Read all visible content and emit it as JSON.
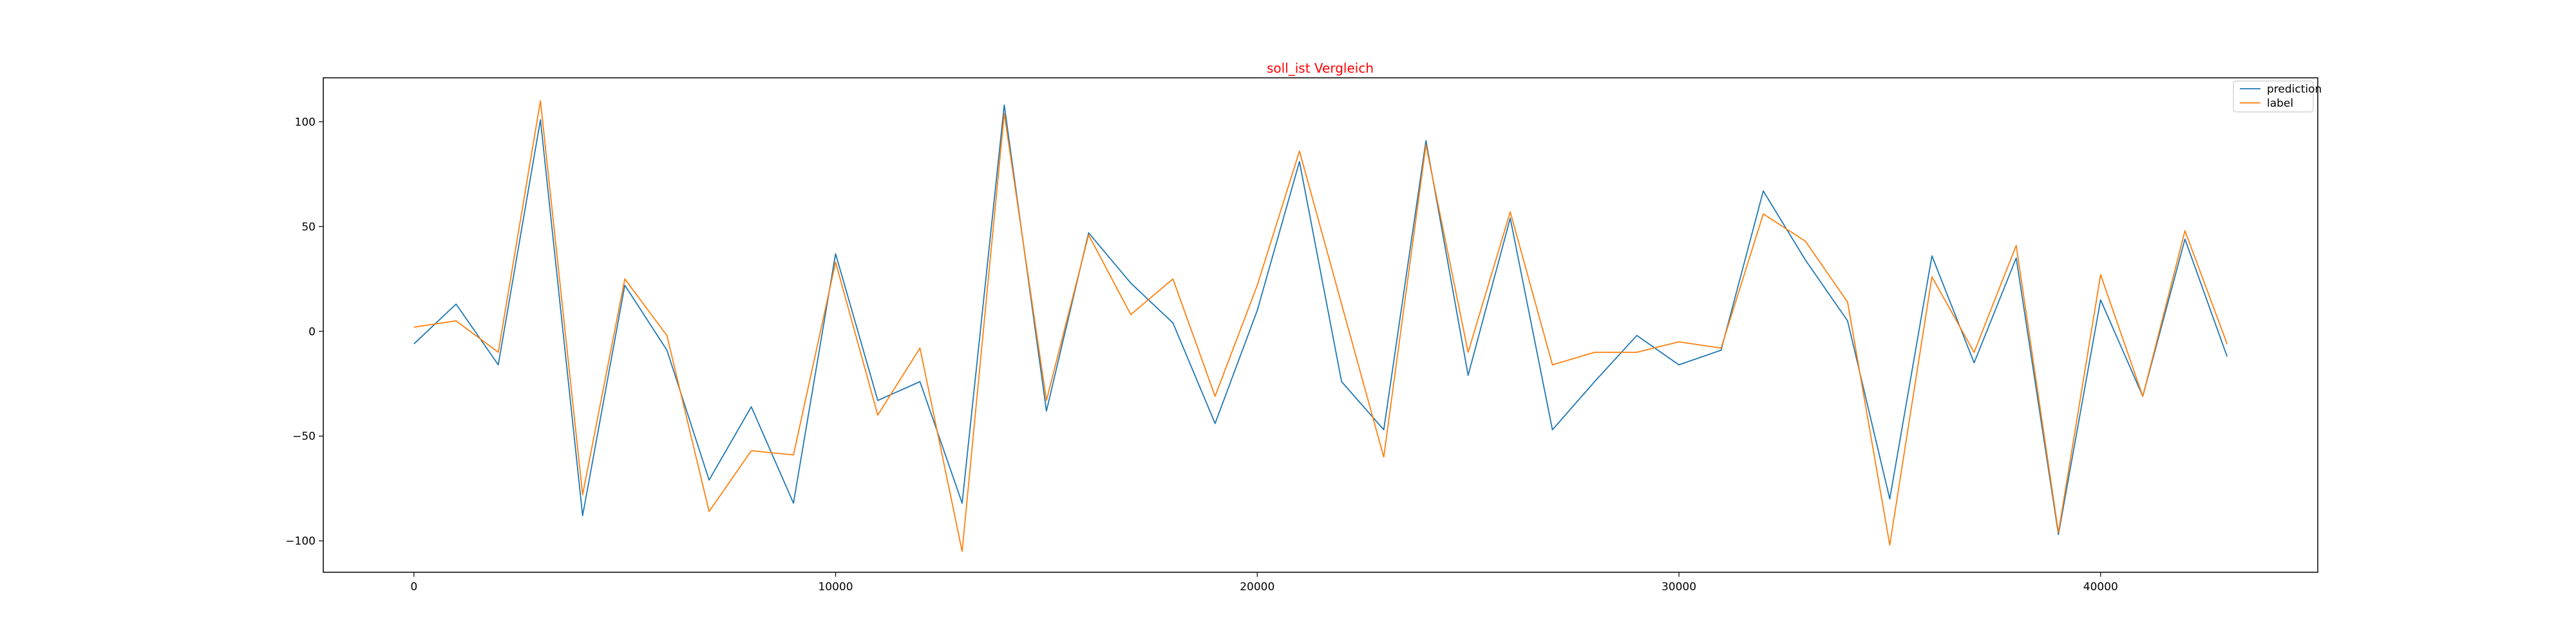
{
  "chart_data": {
    "type": "line",
    "title": "soll_ist Vergleich",
    "title_color": "#ff0000",
    "xlabel": "",
    "ylabel": "",
    "xlim": [
      -2150,
      45150
    ],
    "ylim": [
      -115,
      121
    ],
    "x_ticks": [
      0,
      10000,
      20000,
      30000,
      40000
    ],
    "x_tick_labels": [
      "0",
      "10000",
      "20000",
      "30000",
      "40000"
    ],
    "y_ticks": [
      -100,
      -50,
      0,
      50,
      100
    ],
    "y_tick_labels": [
      "−100",
      "−50",
      "0",
      "50",
      "100"
    ],
    "grid": false,
    "legend_position": "top-right",
    "x": [
      0,
      1000,
      2000,
      3000,
      4000,
      5000,
      6000,
      7000,
      8000,
      9000,
      10000,
      11000,
      12000,
      13000,
      14000,
      15000,
      16000,
      17000,
      18000,
      19000,
      20000,
      21000,
      22000,
      23000,
      24000,
      25000,
      26000,
      27000,
      28000,
      29000,
      30000,
      31000,
      32000,
      33000,
      34000,
      35000,
      36000,
      37000,
      38000,
      39000,
      40000,
      41000,
      42000,
      43000
    ],
    "series": [
      {
        "name": "prediction",
        "color": "#1f77b4",
        "values": [
          -6,
          13,
          -16,
          101,
          -88,
          22,
          -9,
          -71,
          -36,
          -82,
          37,
          -33,
          -24,
          -82,
          108,
          -38,
          47,
          23,
          4,
          -44,
          10,
          81,
          -24,
          -47,
          91,
          -21,
          54,
          -47,
          -24,
          -2,
          -16,
          -9,
          67,
          34,
          5,
          -80,
          36,
          -15,
          35,
          -97,
          15,
          -31,
          44,
          -12
        ]
      },
      {
        "name": "label",
        "color": "#ff7f0e",
        "values": [
          2,
          5,
          -10,
          110,
          -78,
          25,
          -2,
          -86,
          -57,
          -59,
          33,
          -40,
          -8,
          -105,
          104,
          -33,
          46,
          8,
          25,
          -31,
          22,
          86,
          13,
          -60,
          89,
          -10,
          57,
          -16,
          -10,
          -10,
          -5,
          -8,
          56,
          43,
          14,
          -102,
          26,
          -10,
          41,
          -96,
          27,
          -31,
          48,
          -6
        ]
      }
    ]
  }
}
